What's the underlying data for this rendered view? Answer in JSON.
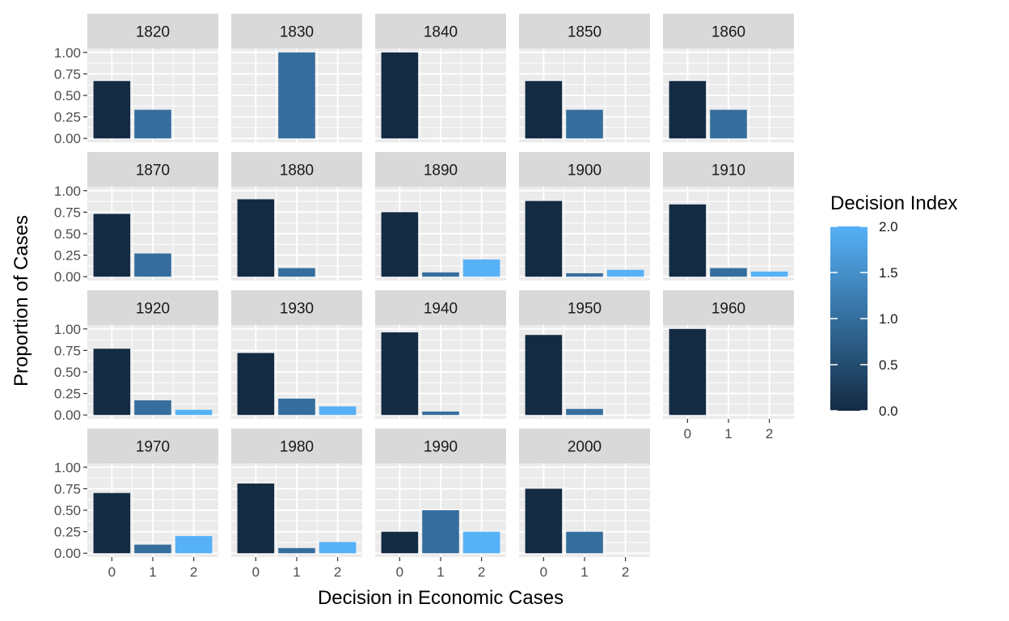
{
  "chart_data": {
    "type": "bar",
    "facet_layout": "wrap",
    "ncol": 5,
    "x_categories": [
      "0",
      "1",
      "2"
    ],
    "y_ticks": [
      "0.00",
      "0.25",
      "0.50",
      "0.75",
      "1.00"
    ],
    "ylim": [
      0,
      1.0
    ],
    "xlabel": "Decision in Economic Cases",
    "ylabel": "Proportion of Cases",
    "legend": {
      "title": "Decision Index",
      "placement": "right",
      "ticks": [
        "0.0",
        "0.5",
        "1.0",
        "1.5",
        "2.0"
      ],
      "range": [
        0,
        2
      ],
      "color_low": "#132B43",
      "color_high": "#56B1F7"
    },
    "panel_background": "#EBEBEB",
    "strip_background": "#D9D9D9",
    "facets": [
      {
        "label": "1820",
        "values": [
          0.667,
          0.333,
          0
        ]
      },
      {
        "label": "1830",
        "values": [
          0,
          1.0,
          0
        ]
      },
      {
        "label": "1840",
        "values": [
          1.0,
          0,
          0
        ]
      },
      {
        "label": "1850",
        "values": [
          0.667,
          0.333,
          0
        ]
      },
      {
        "label": "1860",
        "values": [
          0.667,
          0.333,
          0
        ]
      },
      {
        "label": "1870",
        "values": [
          0.73,
          0.27,
          0
        ]
      },
      {
        "label": "1880",
        "values": [
          0.9,
          0.1,
          0
        ]
      },
      {
        "label": "1890",
        "values": [
          0.75,
          0.05,
          0.2
        ]
      },
      {
        "label": "1900",
        "values": [
          0.88,
          0.04,
          0.08
        ]
      },
      {
        "label": "1910",
        "values": [
          0.84,
          0.1,
          0.06
        ]
      },
      {
        "label": "1920",
        "values": [
          0.77,
          0.17,
          0.06
        ]
      },
      {
        "label": "1930",
        "values": [
          0.72,
          0.19,
          0.1
        ]
      },
      {
        "label": "1940",
        "values": [
          0.96,
          0.04,
          0
        ]
      },
      {
        "label": "1950",
        "values": [
          0.93,
          0.07,
          0
        ]
      },
      {
        "label": "1960",
        "values": [
          1.0,
          0,
          0
        ]
      },
      {
        "label": "1970",
        "values": [
          0.7,
          0.1,
          0.2
        ]
      },
      {
        "label": "1980",
        "values": [
          0.81,
          0.06,
          0.13
        ]
      },
      {
        "label": "1990",
        "values": [
          0.25,
          0.5,
          0.25
        ]
      },
      {
        "label": "2000",
        "values": [
          0.75,
          0.25,
          0
        ]
      }
    ]
  }
}
